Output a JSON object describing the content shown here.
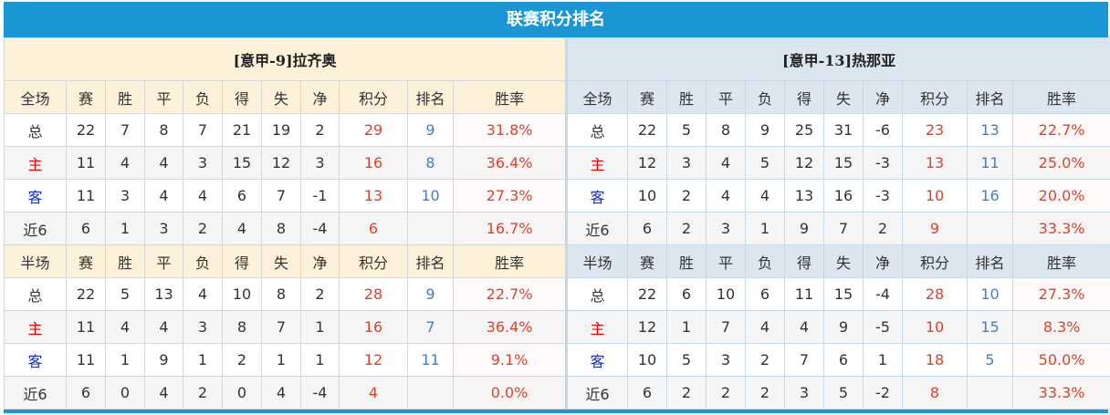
{
  "title": "联赛积分排名",
  "colors": {
    "accent": "#1a96d4",
    "points": "#e0412a",
    "rank": "#3f7fc4",
    "home": "#e00000",
    "away": "#1a2fb8"
  },
  "columns": [
    "赛",
    "胜",
    "平",
    "负",
    "得",
    "失",
    "净",
    "积分",
    "排名",
    "胜率"
  ],
  "teams": [
    {
      "name": "[意甲-9]拉齐奥",
      "sections": [
        {
          "label": "全场",
          "rows": [
            {
              "label": "总",
              "values": [
                "22",
                "7",
                "8",
                "7",
                "21",
                "19",
                "2",
                "29",
                "9",
                "31.8%"
              ]
            },
            {
              "label": "主",
              "values": [
                "11",
                "4",
                "4",
                "3",
                "15",
                "12",
                "3",
                "16",
                "8",
                "36.4%"
              ]
            },
            {
              "label": "客",
              "values": [
                "11",
                "3",
                "4",
                "4",
                "6",
                "7",
                "-1",
                "13",
                "10",
                "27.3%"
              ]
            },
            {
              "label": "近6",
              "values": [
                "6",
                "1",
                "3",
                "2",
                "4",
                "8",
                "-4",
                "6",
                "",
                "16.7%"
              ]
            }
          ]
        },
        {
          "label": "半场",
          "rows": [
            {
              "label": "总",
              "values": [
                "22",
                "5",
                "13",
                "4",
                "10",
                "8",
                "2",
                "28",
                "9",
                "22.7%"
              ]
            },
            {
              "label": "主",
              "values": [
                "11",
                "4",
                "4",
                "3",
                "8",
                "7",
                "1",
                "16",
                "7",
                "36.4%"
              ]
            },
            {
              "label": "客",
              "values": [
                "11",
                "1",
                "9",
                "1",
                "2",
                "1",
                "1",
                "12",
                "11",
                "9.1%"
              ]
            },
            {
              "label": "近6",
              "values": [
                "6",
                "0",
                "4",
                "2",
                "0",
                "4",
                "-4",
                "4",
                "",
                "0.0%"
              ]
            }
          ]
        }
      ]
    },
    {
      "name": "[意甲-13]热那亚",
      "sections": [
        {
          "label": "全场",
          "rows": [
            {
              "label": "总",
              "values": [
                "22",
                "5",
                "8",
                "9",
                "25",
                "31",
                "-6",
                "23",
                "13",
                "22.7%"
              ]
            },
            {
              "label": "主",
              "values": [
                "12",
                "3",
                "4",
                "5",
                "12",
                "15",
                "-3",
                "13",
                "11",
                "25.0%"
              ]
            },
            {
              "label": "客",
              "values": [
                "10",
                "2",
                "4",
                "4",
                "13",
                "16",
                "-3",
                "10",
                "16",
                "20.0%"
              ]
            },
            {
              "label": "近6",
              "values": [
                "6",
                "2",
                "3",
                "1",
                "9",
                "7",
                "2",
                "9",
                "",
                "33.3%"
              ]
            }
          ]
        },
        {
          "label": "半场",
          "rows": [
            {
              "label": "总",
              "values": [
                "22",
                "6",
                "10",
                "6",
                "11",
                "15",
                "-4",
                "28",
                "10",
                "27.3%"
              ]
            },
            {
              "label": "主",
              "values": [
                "12",
                "1",
                "7",
                "4",
                "4",
                "9",
                "-5",
                "10",
                "15",
                "8.3%"
              ]
            },
            {
              "label": "客",
              "values": [
                "10",
                "5",
                "3",
                "2",
                "7",
                "6",
                "1",
                "18",
                "5",
                "50.0%"
              ]
            },
            {
              "label": "近6",
              "values": [
                "6",
                "2",
                "2",
                "2",
                "3",
                "5",
                "-2",
                "8",
                "",
                "33.3%"
              ]
            }
          ]
        }
      ]
    }
  ]
}
